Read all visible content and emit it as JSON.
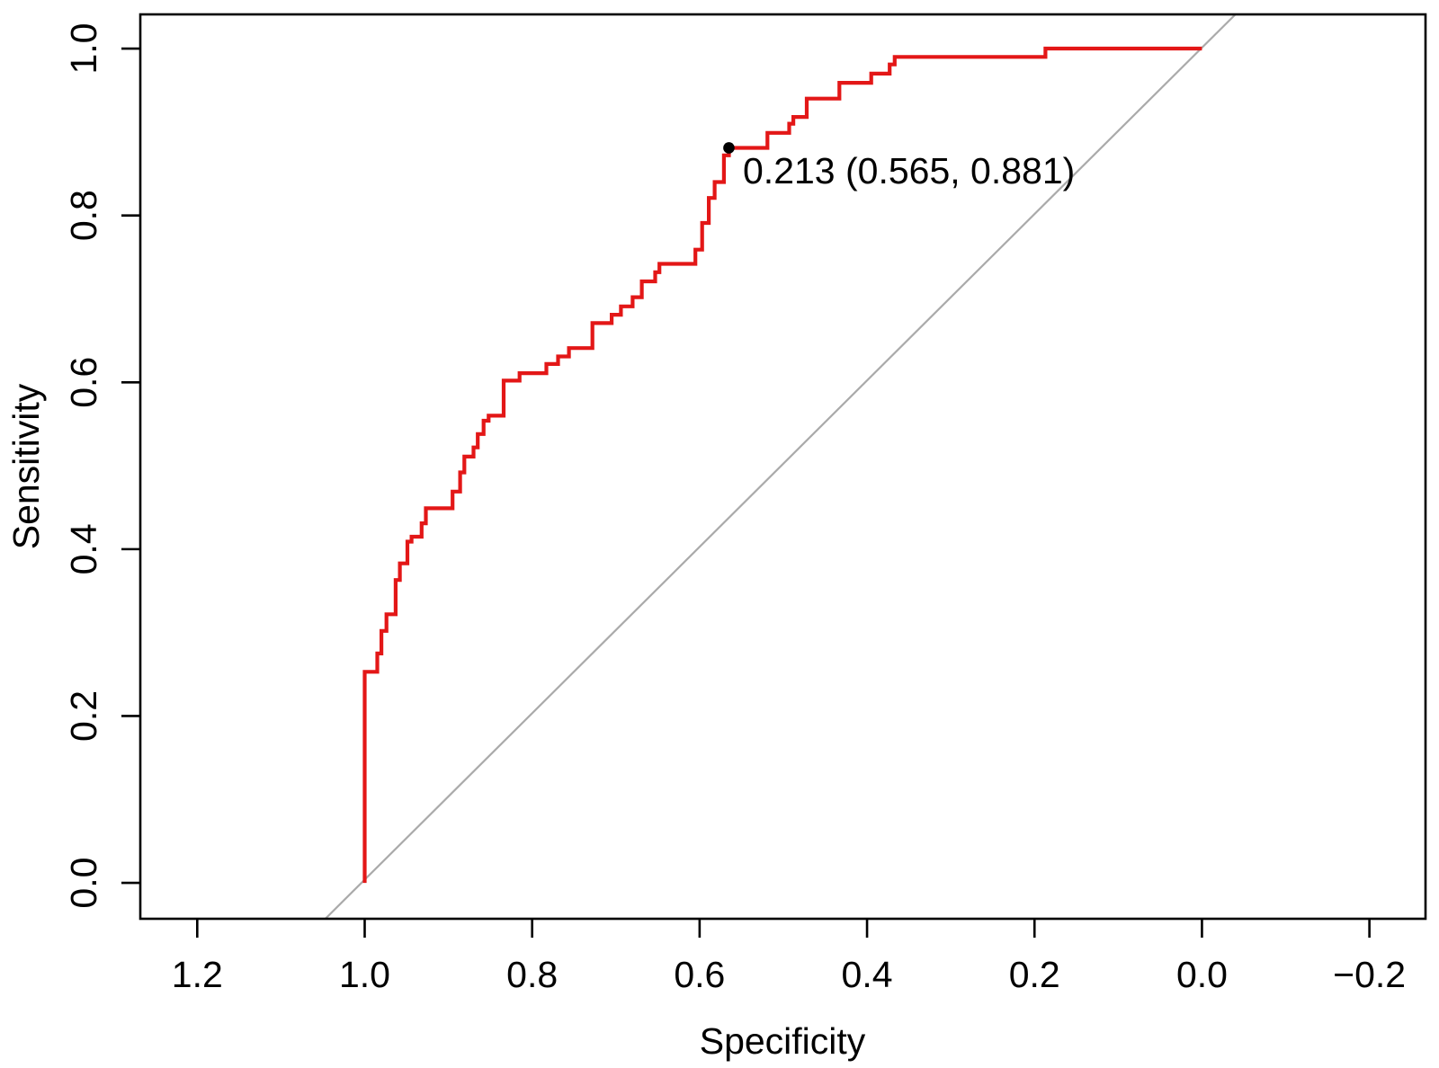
{
  "chart_data": {
    "type": "line",
    "subtype": "roc-step-curve",
    "title": "",
    "xlabel": "Specificity",
    "ylabel": "Sensitivity",
    "x_axis_reversed": true,
    "grid": false,
    "legend": "none",
    "xlim": [
      1.268,
      -0.267
    ],
    "ylim": [
      -0.043,
      1.041
    ],
    "x_ticks": [
      1.2,
      1.0,
      0.8,
      0.6,
      0.4,
      0.2,
      0.0,
      -0.2
    ],
    "x_tick_labels": [
      "1.2",
      "1.0",
      "0.8",
      "0.6",
      "0.4",
      "0.2",
      "0.0",
      "−0.2"
    ],
    "y_ticks": [
      0.0,
      0.2,
      0.4,
      0.6,
      0.8,
      1.0
    ],
    "y_tick_labels": [
      "0.0",
      "0.2",
      "0.4",
      "0.6",
      "0.8",
      "1.0"
    ],
    "colors": {
      "roc_curve": "#e31717",
      "chance_line": "#aaaaaa",
      "marker": "#000000",
      "axes": "#000000"
    },
    "series": [
      {
        "name": "roc-curve",
        "color": "#e31717",
        "points": [
          [
            1.0,
            0.0
          ],
          [
            1.0,
            0.253
          ],
          [
            0.985,
            0.253
          ],
          [
            0.985,
            0.275
          ],
          [
            0.98,
            0.275
          ],
          [
            0.98,
            0.302
          ],
          [
            0.974,
            0.302
          ],
          [
            0.974,
            0.322
          ],
          [
            0.963,
            0.322
          ],
          [
            0.963,
            0.363
          ],
          [
            0.958,
            0.363
          ],
          [
            0.958,
            0.383
          ],
          [
            0.949,
            0.383
          ],
          [
            0.949,
            0.409
          ],
          [
            0.944,
            0.409
          ],
          [
            0.944,
            0.415
          ],
          [
            0.932,
            0.415
          ],
          [
            0.932,
            0.431
          ],
          [
            0.927,
            0.431
          ],
          [
            0.927,
            0.449
          ],
          [
            0.895,
            0.449
          ],
          [
            0.895,
            0.469
          ],
          [
            0.886,
            0.469
          ],
          [
            0.886,
            0.492
          ],
          [
            0.881,
            0.492
          ],
          [
            0.881,
            0.511
          ],
          [
            0.87,
            0.511
          ],
          [
            0.87,
            0.522
          ],
          [
            0.865,
            0.522
          ],
          [
            0.865,
            0.538
          ],
          [
            0.858,
            0.538
          ],
          [
            0.858,
            0.554
          ],
          [
            0.852,
            0.554
          ],
          [
            0.852,
            0.56
          ],
          [
            0.834,
            0.56
          ],
          [
            0.834,
            0.602
          ],
          [
            0.815,
            0.602
          ],
          [
            0.815,
            0.611
          ],
          [
            0.783,
            0.611
          ],
          [
            0.783,
            0.622
          ],
          [
            0.769,
            0.622
          ],
          [
            0.769,
            0.631
          ],
          [
            0.756,
            0.631
          ],
          [
            0.756,
            0.641
          ],
          [
            0.728,
            0.641
          ],
          [
            0.728,
            0.671
          ],
          [
            0.705,
            0.671
          ],
          [
            0.705,
            0.681
          ],
          [
            0.694,
            0.681
          ],
          [
            0.694,
            0.691
          ],
          [
            0.68,
            0.691
          ],
          [
            0.68,
            0.702
          ],
          [
            0.669,
            0.702
          ],
          [
            0.669,
            0.721
          ],
          [
            0.653,
            0.721
          ],
          [
            0.653,
            0.732
          ],
          [
            0.648,
            0.732
          ],
          [
            0.648,
            0.742
          ],
          [
            0.605,
            0.742
          ],
          [
            0.605,
            0.759
          ],
          [
            0.597,
            0.759
          ],
          [
            0.597,
            0.791
          ],
          [
            0.589,
            0.791
          ],
          [
            0.589,
            0.821
          ],
          [
            0.582,
            0.821
          ],
          [
            0.582,
            0.84
          ],
          [
            0.571,
            0.84
          ],
          [
            0.571,
            0.872
          ],
          [
            0.565,
            0.872
          ],
          [
            0.565,
            0.881
          ],
          [
            0.519,
            0.881
          ],
          [
            0.519,
            0.899
          ],
          [
            0.493,
            0.899
          ],
          [
            0.493,
            0.91
          ],
          [
            0.488,
            0.91
          ],
          [
            0.488,
            0.918
          ],
          [
            0.472,
            0.918
          ],
          [
            0.472,
            0.94
          ],
          [
            0.433,
            0.94
          ],
          [
            0.433,
            0.959
          ],
          [
            0.395,
            0.959
          ],
          [
            0.395,
            0.97
          ],
          [
            0.373,
            0.97
          ],
          [
            0.373,
            0.981
          ],
          [
            0.367,
            0.981
          ],
          [
            0.367,
            0.99
          ],
          [
            0.187,
            0.99
          ],
          [
            0.187,
            1.0
          ],
          [
            0.0,
            1.0
          ]
        ]
      },
      {
        "name": "chance-line",
        "color": "#aaaaaa",
        "points": [
          [
            1.047,
            -0.043
          ],
          [
            -0.04,
            1.041
          ]
        ]
      }
    ],
    "best_threshold": {
      "label": "0.213 (0.565, 0.881)",
      "threshold": 0.213,
      "specificity": 0.565,
      "sensitivity": 0.881,
      "marker_color": "#000000"
    }
  }
}
